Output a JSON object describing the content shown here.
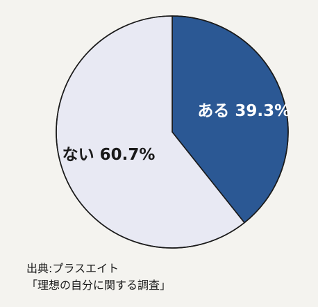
{
  "colors": {
    "background": "#f4f3ef",
    "slice_yes": "#2b5894",
    "slice_no": "#e8e9f3",
    "outline": "#1a1a1a",
    "label_on_dark": "#ffffff",
    "label_on_light": "#1a1a1a"
  },
  "chart_data": {
    "type": "pie",
    "title": "",
    "slices": [
      {
        "label": "ある",
        "value": 39.3,
        "display": "ある 39.3%",
        "color": "#2b5894"
      },
      {
        "label": "ない",
        "value": 60.7,
        "display": "ない 60.7%",
        "color": "#e8e9f3"
      }
    ],
    "start": "12 o'clock",
    "direction": "clockwise",
    "legend": "none"
  },
  "source": {
    "line1": "出典:プラスエイト",
    "line2": "「理想の自分に関する調査」"
  }
}
